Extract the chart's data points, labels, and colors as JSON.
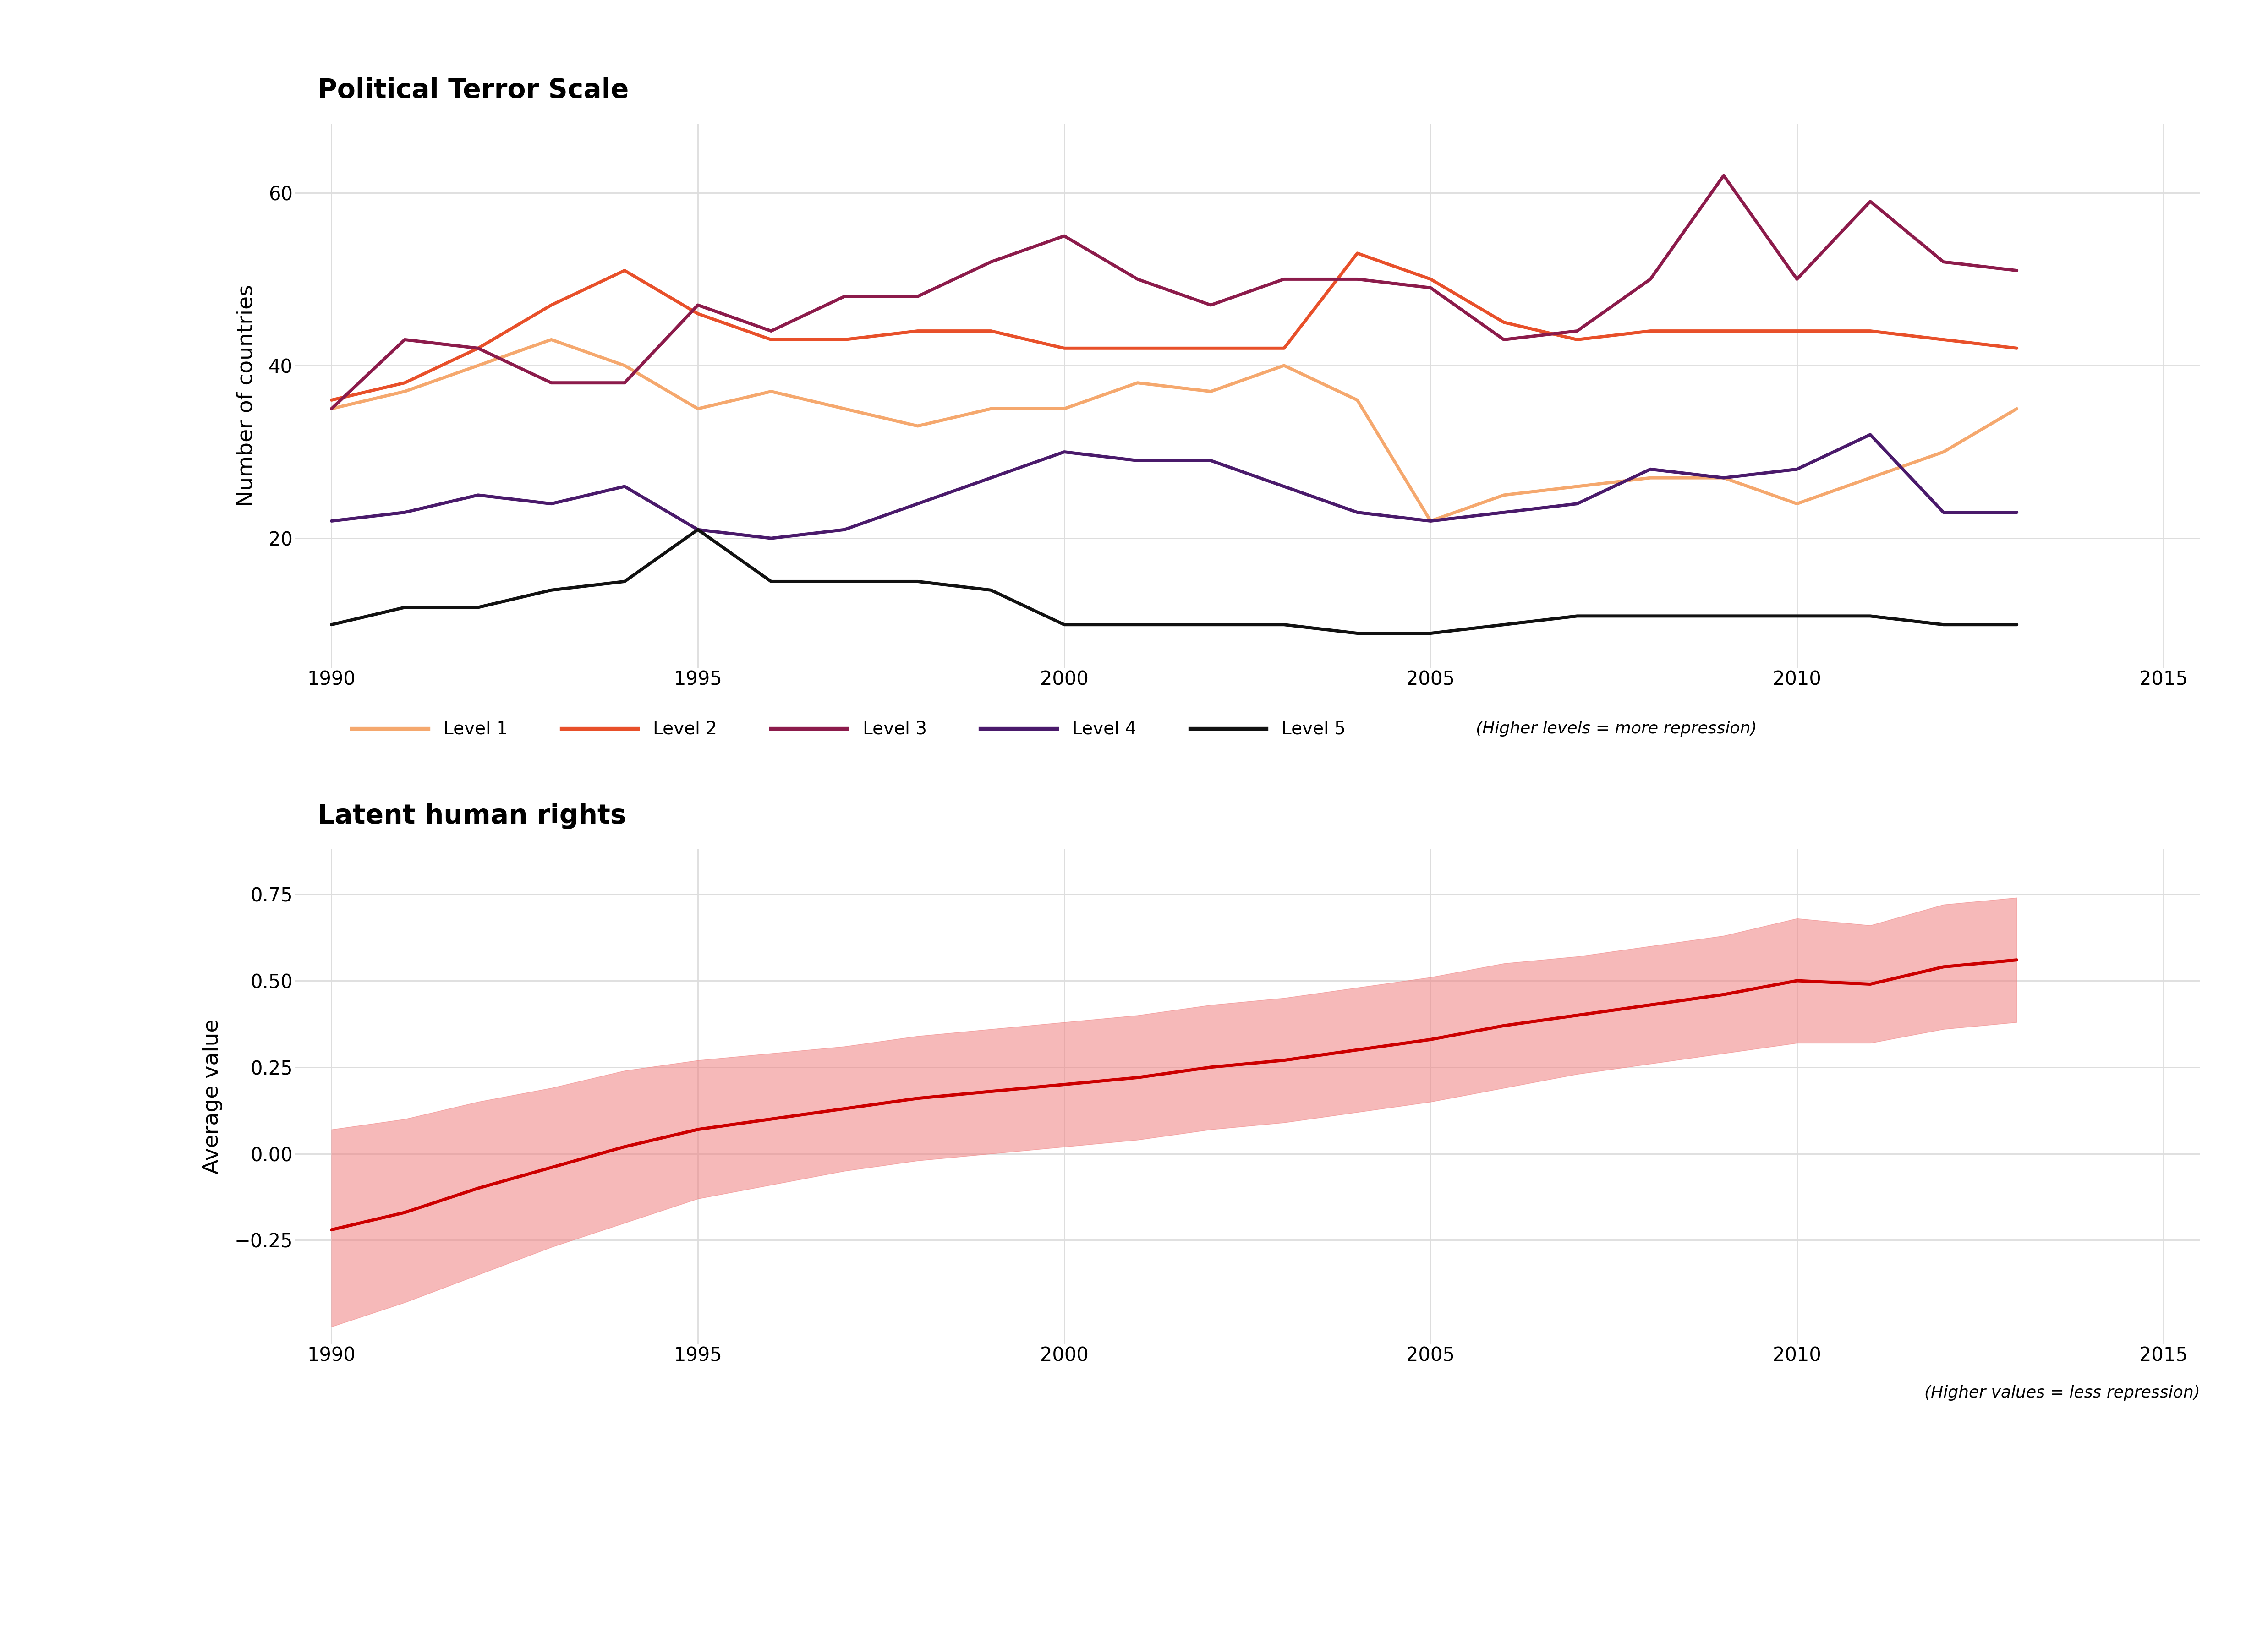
{
  "title1": "Political Terror Scale",
  "title2": "Latent human rights",
  "ylabel1": "Number of countries",
  "ylabel2": "Average value",
  "note1": "(Higher levels = more repression)",
  "note2": "(Higher values = less repression)",
  "years": [
    1990,
    1991,
    1992,
    1993,
    1994,
    1995,
    1996,
    1997,
    1998,
    1999,
    2000,
    2001,
    2002,
    2003,
    2004,
    2005,
    2006,
    2007,
    2008,
    2009,
    2010,
    2011,
    2012,
    2013
  ],
  "level1": [
    35,
    37,
    40,
    43,
    40,
    35,
    37,
    35,
    33,
    35,
    35,
    38,
    37,
    40,
    36,
    22,
    25,
    26,
    27,
    27,
    24,
    27,
    30,
    35
  ],
  "level2": [
    36,
    38,
    42,
    47,
    51,
    46,
    43,
    43,
    44,
    44,
    42,
    42,
    42,
    42,
    53,
    50,
    45,
    43,
    44,
    44,
    44,
    44,
    43,
    42
  ],
  "level3": [
    35,
    43,
    42,
    38,
    38,
    47,
    44,
    48,
    48,
    52,
    55,
    50,
    47,
    50,
    50,
    49,
    43,
    44,
    50,
    62,
    50,
    59,
    52,
    51
  ],
  "level4": [
    22,
    23,
    25,
    24,
    26,
    21,
    20,
    21,
    24,
    27,
    30,
    29,
    29,
    26,
    23,
    22,
    23,
    24,
    28,
    27,
    28,
    32,
    23,
    23
  ],
  "level5": [
    10,
    12,
    12,
    14,
    15,
    21,
    15,
    15,
    15,
    14,
    10,
    10,
    10,
    10,
    9,
    9,
    10,
    11,
    11,
    11,
    11,
    11,
    10,
    10
  ],
  "lhr_years": [
    1990,
    1991,
    1992,
    1993,
    1994,
    1995,
    1996,
    1997,
    1998,
    1999,
    2000,
    2001,
    2002,
    2003,
    2004,
    2005,
    2006,
    2007,
    2008,
    2009,
    2010,
    2011,
    2012,
    2013
  ],
  "lhr_mean": [
    -0.22,
    -0.17,
    -0.1,
    -0.04,
    0.02,
    0.07,
    0.1,
    0.13,
    0.16,
    0.18,
    0.2,
    0.22,
    0.25,
    0.27,
    0.3,
    0.33,
    0.37,
    0.4,
    0.43,
    0.46,
    0.5,
    0.49,
    0.54,
    0.56
  ],
  "lhr_upper": [
    0.07,
    0.1,
    0.15,
    0.19,
    0.24,
    0.27,
    0.29,
    0.31,
    0.34,
    0.36,
    0.38,
    0.4,
    0.43,
    0.45,
    0.48,
    0.51,
    0.55,
    0.57,
    0.6,
    0.63,
    0.68,
    0.66,
    0.72,
    0.74
  ],
  "lhr_lower": [
    -0.5,
    -0.43,
    -0.35,
    -0.27,
    -0.2,
    -0.13,
    -0.09,
    -0.05,
    -0.02,
    0.0,
    0.02,
    0.04,
    0.07,
    0.09,
    0.12,
    0.15,
    0.19,
    0.23,
    0.26,
    0.29,
    0.32,
    0.32,
    0.36,
    0.38
  ],
  "color_level1": "#F5A86E",
  "color_level2": "#E8502A",
  "color_level3": "#8C1B4B",
  "color_level4": "#4A1A6B",
  "color_level5": "#111111",
  "color_lhr": "#CC0000",
  "color_lhr_fill": "#F08080",
  "bg_title": "#CCCCCC",
  "bg_plot": "#FFFFFF",
  "bg_outer": "#FFFFFF",
  "ylim1": [
    5,
    68
  ],
  "yticks1": [
    20,
    40,
    60
  ],
  "ylim2": [
    -0.55,
    0.88
  ],
  "yticks2": [
    -0.25,
    0.0,
    0.25,
    0.5,
    0.75
  ],
  "xlim": [
    1989.5,
    2015.5
  ],
  "xticks": [
    1990,
    1995,
    2000,
    2005,
    2010,
    2015
  ]
}
